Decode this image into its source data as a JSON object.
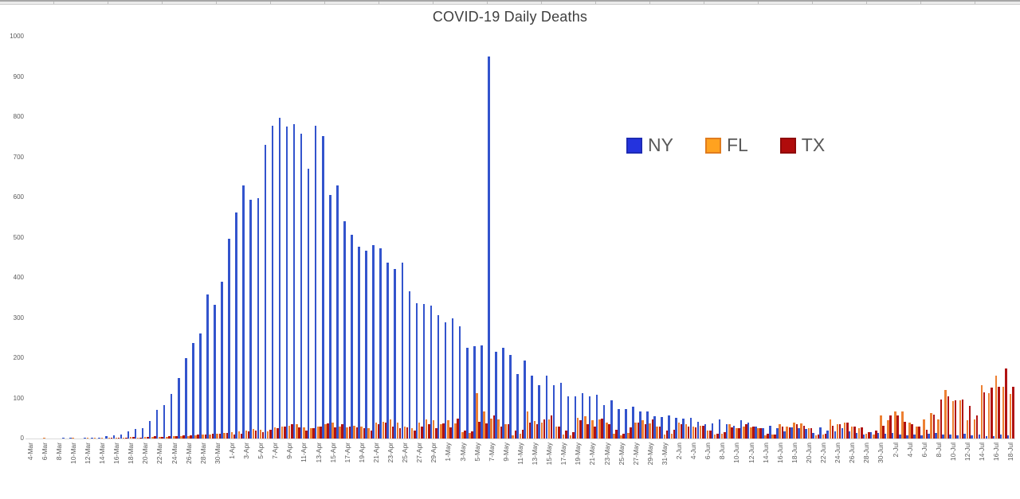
{
  "chart": {
    "legend": [
      {
        "label": "NY",
        "swatch": "#2433DE",
        "swatch_border": "#1d2bb4"
      },
      {
        "label": "FL",
        "swatch": "#FFA21F",
        "swatch_border": "#e07c1e"
      },
      {
        "label": "TX",
        "swatch": "#B00B0B",
        "swatch_border": "#8f0909"
      }
    ]
  },
  "chart_data": {
    "type": "bar",
    "title": "COVID-19 Daily Deaths",
    "xlabel": "",
    "ylabel": "",
    "ylim": [
      0,
      1000
    ],
    "yticks": [
      0,
      100,
      200,
      300,
      400,
      500,
      600,
      700,
      800,
      900,
      1000
    ],
    "grid": false,
    "legend_position": "center-right",
    "x_label_every": 2,
    "categories": [
      "4-Mar",
      "5-Mar",
      "6-Mar",
      "7-Mar",
      "8-Mar",
      "9-Mar",
      "10-Mar",
      "11-Mar",
      "12-Mar",
      "13-Mar",
      "14-Mar",
      "15-Mar",
      "16-Mar",
      "17-Mar",
      "18-Mar",
      "19-Mar",
      "20-Mar",
      "21-Mar",
      "22-Mar",
      "23-Mar",
      "24-Mar",
      "25-Mar",
      "26-Mar",
      "27-Mar",
      "28-Mar",
      "29-Mar",
      "30-Mar",
      "31-Mar",
      "1-Apr",
      "2-Apr",
      "3-Apr",
      "4-Apr",
      "5-Apr",
      "6-Apr",
      "7-Apr",
      "8-Apr",
      "9-Apr",
      "10-Apr",
      "11-Apr",
      "12-Apr",
      "13-Apr",
      "14-Apr",
      "15-Apr",
      "16-Apr",
      "17-Apr",
      "18-Apr",
      "19-Apr",
      "20-Apr",
      "21-Apr",
      "22-Apr",
      "23-Apr",
      "24-Apr",
      "25-Apr",
      "26-Apr",
      "27-Apr",
      "28-Apr",
      "29-Apr",
      "30-Apr",
      "1-May",
      "2-May",
      "3-May",
      "4-May",
      "5-May",
      "6-May",
      "7-May",
      "8-May",
      "9-May",
      "10-May",
      "11-May",
      "12-May",
      "13-May",
      "14-May",
      "15-May",
      "16-May",
      "17-May",
      "18-May",
      "19-May",
      "20-May",
      "21-May",
      "22-May",
      "23-May",
      "24-May",
      "25-May",
      "26-May",
      "27-May",
      "28-May",
      "29-May",
      "30-May",
      "31-May",
      "1-Jun",
      "2-Jun",
      "3-Jun",
      "4-Jun",
      "5-Jun",
      "6-Jun",
      "7-Jun",
      "8-Jun",
      "9-Jun",
      "10-Jun",
      "11-Jun",
      "12-Jun",
      "13-Jun",
      "14-Jun",
      "15-Jun",
      "16-Jun",
      "17-Jun",
      "18-Jun",
      "19-Jun",
      "20-Jun",
      "21-Jun",
      "22-Jun",
      "23-Jun",
      "24-Jun",
      "25-Jun",
      "26-Jun",
      "27-Jun",
      "28-Jun",
      "29-Jun",
      "30-Jun",
      "1-Jul",
      "2-Jul",
      "3-Jul",
      "4-Jul",
      "5-Jul",
      "6-Jul",
      "7-Jul",
      "8-Jul",
      "9-Jul",
      "10-Jul",
      "11-Jul",
      "12-Jul",
      "13-Jul",
      "14-Jul",
      "15-Jul",
      "16-Jul",
      "17-Jul",
      "18-Jul"
    ],
    "series": [
      {
        "name": "NY",
        "color": "#3354CD",
        "values": [
          0,
          0,
          0,
          0,
          0,
          1,
          1,
          0,
          1,
          2,
          2,
          5,
          7,
          10,
          17,
          23,
          25,
          44,
          71,
          84,
          110,
          150,
          200,
          237,
          262,
          358,
          332,
          391,
          498,
          562,
          630,
          594,
          599,
          731,
          779,
          799,
          777,
          783,
          758,
          671,
          778,
          752,
          606,
          630,
          540,
          507,
          478,
          468,
          481,
          474,
          438,
          422,
          437,
          367,
          337,
          335,
          330,
          306,
          289,
          299,
          280,
          226,
          230,
          232,
          951,
          216,
          226,
          207,
          161,
          195,
          157,
          132,
          157,
          132,
          139,
          105,
          105,
          112,
          105,
          109,
          84,
          96,
          73,
          74,
          79,
          67,
          67,
          56,
          54,
          58,
          52,
          49,
          52,
          42,
          35,
          38,
          48,
          36,
          32,
          45,
          40,
          29,
          25,
          31,
          26,
          17,
          28,
          25,
          24,
          14,
          27,
          19,
          17,
          25,
          18,
          13,
          10,
          16,
          13,
          11,
          13,
          9,
          8,
          10,
          7,
          11,
          13,
          10,
          9,
          8,
          11,
          7,
          9,
          6,
          5,
          10,
          8
        ]
      },
      {
        "name": "FL",
        "color": "#ED8032",
        "values": [
          0,
          0,
          2,
          0,
          0,
          0,
          2,
          0,
          1,
          2,
          2,
          1,
          2,
          2,
          3,
          2,
          3,
          4,
          3,
          4,
          5,
          6,
          6,
          8,
          9,
          10,
          12,
          14,
          16,
          18,
          20,
          24,
          22,
          17,
          28,
          30,
          32,
          35,
          28,
          25,
          30,
          35,
          40,
          30,
          28,
          32,
          30,
          25,
          40,
          42,
          47,
          39,
          29,
          25,
          40,
          48,
          46,
          35,
          46,
          38,
          15,
          14,
          113,
          68,
          50,
          48,
          36,
          8,
          12,
          67,
          44,
          40,
          48,
          30,
          10,
          8,
          52,
          55,
          45,
          48,
          40,
          12,
          8,
          14,
          40,
          45,
          38,
          30,
          10,
          12,
          40,
          35,
          30,
          32,
          20,
          10,
          12,
          35,
          25,
          30,
          28,
          25,
          8,
          10,
          35,
          30,
          40,
          38,
          25,
          8,
          10,
          48,
          35,
          40,
          30,
          25,
          12,
          10,
          58,
          45,
          67,
          67,
          39,
          30,
          48,
          63,
          48,
          120,
          93,
          95,
          45,
          48,
          132,
          112,
          156,
          128,
          110
        ]
      },
      {
        "name": "TX",
        "color": "#B01212",
        "values": [
          0,
          0,
          0,
          0,
          0,
          0,
          0,
          0,
          0,
          0,
          0,
          1,
          1,
          2,
          3,
          2,
          3,
          5,
          4,
          5,
          6,
          7,
          8,
          9,
          10,
          11,
          12,
          14,
          10,
          12,
          18,
          20,
          15,
          22,
          25,
          30,
          35,
          28,
          20,
          25,
          30,
          38,
          28,
          35,
          30,
          27,
          25,
          20,
          35,
          40,
          30,
          25,
          28,
          20,
          30,
          35,
          25,
          38,
          28,
          50,
          20,
          18,
          42,
          38,
          58,
          30,
          35,
          20,
          22,
          40,
          35,
          48,
          58,
          30,
          20,
          15,
          45,
          35,
          30,
          50,
          35,
          22,
          12,
          28,
          40,
          35,
          48,
          30,
          20,
          22,
          35,
          30,
          28,
          32,
          20,
          12,
          15,
          28,
          25,
          35,
          30,
          25,
          12,
          10,
          30,
          28,
          35,
          32,
          25,
          10,
          12,
          32,
          35,
          40,
          30,
          28,
          15,
          20,
          32,
          57,
          58,
          42,
          35,
          30,
          22,
          60,
          98,
          105,
          95,
          97,
          81,
          58,
          115,
          127,
          129,
          174,
          128
        ]
      }
    ]
  }
}
